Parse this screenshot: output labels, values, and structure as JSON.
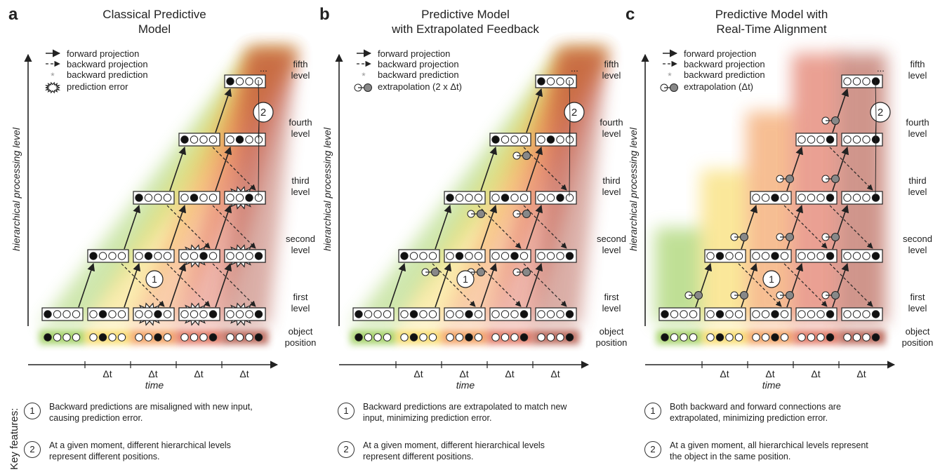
{
  "key_features_label": "Key features:",
  "panels": [
    {
      "letter": "a",
      "title": [
        "Classical Predictive",
        "Model"
      ],
      "legend": [
        "forward projection",
        "backward projection",
        "backward prediction",
        "prediction error"
      ],
      "features": [
        {
          "num": "1",
          "text": "Backward predictions are misaligned with new input, causing prediction error."
        },
        {
          "num": "2",
          "text": "At a given moment, different hierarchical levels represent different positions."
        }
      ]
    },
    {
      "letter": "b",
      "title": [
        "Predictive Model",
        "with Extrapolated Feedback"
      ],
      "legend": [
        "forward projection",
        "backward projection",
        "backward prediction",
        "extrapolation (2 x Δt)"
      ],
      "features": [
        {
          "num": "1",
          "text": "Backward predictions are extrapolated to match new input, minimizing prediction error."
        },
        {
          "num": "2",
          "text": "At a given moment, different hierarchical levels represent different positions."
        }
      ]
    },
    {
      "letter": "c",
      "title": [
        "Predictive Model with",
        "Real-Time Alignment"
      ],
      "legend": [
        "forward projection",
        "backward projection",
        "backward prediction",
        "extrapolation (Δt)"
      ],
      "features": [
        {
          "num": "1",
          "text": "Both backward and forward connections are extrapolated, minimizing prediction error."
        },
        {
          "num": "2",
          "text": "At a given moment, all hierarchical levels represent the object in the same position."
        }
      ]
    }
  ],
  "y_axis_label": "hierarchical processing level",
  "x_axis_label": "time",
  "delta_t": "Δt",
  "ellipsis": "...",
  "callout_1": "1",
  "callout_2": "2",
  "level_labels": [
    [
      "fifth",
      "level"
    ],
    [
      "fourth",
      "level"
    ],
    [
      "third",
      "level"
    ],
    [
      "second",
      "level"
    ],
    [
      "first",
      "level"
    ],
    [
      "object",
      "position"
    ]
  ],
  "colors": {
    "green": "#8cc63f",
    "yellow": "#f7d44a",
    "orange": "#f0893a",
    "red": "#d9533a",
    "darkred": "#a8412f",
    "ink": "#222222"
  }
}
